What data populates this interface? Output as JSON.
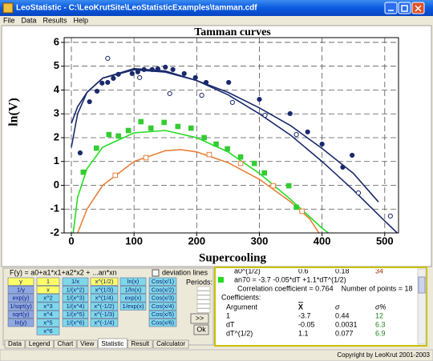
{
  "window": {
    "title": "LeoStatistic - C:\\LeoKrutSite\\LeoStatisticExamples\\tamman.cdf",
    "menu": [
      "File",
      "Data",
      "Results",
      "Help"
    ],
    "status": "Copyright by LeoKrut 2001-2003"
  },
  "chart_data": {
    "type": "scatter",
    "title": "Tamman curves",
    "x_label": "Supercooling",
    "y_label": "ln(V)",
    "xlim": [
      -11.5,
      522
    ],
    "ylim": [
      -2,
      6.2
    ],
    "xticks": [
      0,
      100,
      200,
      300,
      400,
      500
    ],
    "yticks": [
      -2,
      -1,
      0,
      1,
      2,
      3,
      4,
      5,
      6
    ],
    "grid": true,
    "series": [
      {
        "style": "line",
        "color": "#1a2a6c",
        "x": [
          0,
          10,
          25,
          50,
          100,
          150,
          200,
          250,
          300,
          350,
          400,
          450,
          490
        ],
        "values": [
          2.6,
          3.3,
          3.9,
          4.5,
          4.85,
          4.75,
          4.4,
          3.9,
          3.25,
          2.5,
          1.55,
          0.5,
          -0.7
        ]
      },
      {
        "style": "line",
        "color": "#1a2a6c",
        "x": [
          0,
          10,
          25,
          50,
          100,
          150,
          200,
          250,
          300,
          350,
          400,
          450,
          500,
          520
        ],
        "values": [
          1.6,
          3.0,
          3.9,
          4.5,
          4.9,
          4.8,
          4.4,
          3.8,
          3.0,
          2.1,
          1.0,
          -0.2,
          -1.5,
          -2
        ]
      },
      {
        "style": "line",
        "color": "#22dd22",
        "x": [
          3,
          10,
          25,
          50,
          100,
          150,
          200,
          250,
          300,
          350,
          400,
          410
        ],
        "values": [
          -2,
          -0.5,
          0.7,
          1.6,
          2.2,
          2.3,
          2.0,
          1.4,
          0.5,
          -0.6,
          -1.8,
          -2
        ]
      },
      {
        "style": "line",
        "color": "#e8803a",
        "x": [
          10,
          25,
          50,
          100,
          150,
          175,
          200,
          250,
          300,
          350,
          380,
          395
        ],
        "values": [
          -2,
          -1.0,
          0.0,
          1.0,
          1.45,
          1.5,
          1.4,
          0.95,
          0.25,
          -0.7,
          -1.4,
          -2
        ]
      },
      {
        "style": "circle-filled",
        "color": "#1a2a6c",
        "x": [
          14,
          29,
          41,
          49,
          58,
          67,
          75,
          97,
          106,
          116,
          129,
          138,
          150,
          162,
          180,
          198,
          215,
          251,
          300,
          349,
          377,
          400,
          433,
          448
        ],
        "values": [
          1.36,
          3.51,
          3.95,
          4.29,
          4.32,
          4.49,
          4.66,
          4.69,
          4.76,
          4.86,
          4.86,
          4.89,
          4.96,
          4.86,
          4.69,
          4.52,
          4.32,
          4.32,
          3.61,
          3.01,
          2.24,
          1.73,
          0.76,
          1.26
        ]
      },
      {
        "style": "circle-open",
        "color": "#1a2a6c",
        "x": [
          58,
          109,
          157,
          208,
          257,
          309,
          359,
          458,
          509
        ],
        "values": [
          5.33,
          4.52,
          3.85,
          3.78,
          3.48,
          2.94,
          2.13,
          -0.32,
          -1.29
        ]
      },
      {
        "style": "square-filled",
        "color": "#33cc33",
        "x": [
          19,
          40,
          60,
          75,
          91,
          111,
          127,
          148,
          170,
          191,
          212,
          231,
          249,
          270,
          292,
          308,
          347,
          359
        ],
        "values": [
          0.55,
          1.56,
          2.13,
          2.07,
          2.3,
          2.67,
          2.4,
          2.64,
          2.47,
          2.4,
          2.0,
          1.73,
          1.53,
          1.19,
          0.92,
          0.52,
          -0.02,
          -0.92
        ]
      },
      {
        "style": "square-open",
        "color": "#e8803a",
        "x": [
          70,
          119,
          220,
          270,
          322,
          368
        ],
        "values": [
          0.42,
          1.16,
          1.29,
          0.92,
          -0.02,
          -1.09
        ]
      }
    ]
  },
  "panel": {
    "formula": "F(y) = a0+a1*x1+a2*x2 + ...an*xn",
    "deviation_lines": "deviation lines",
    "periods": "Periods:",
    "more": ">>",
    "ok": "Ok",
    "button_columns": [
      {
        "color": "#8fa8e0",
        "labels": [
          "y",
          "1/y",
          "exp(y)",
          "1/sqrt(y)",
          "sqrt(y)",
          "ln(y)"
        ]
      },
      {
        "color": "#7fd8e8",
        "labels": [
          "1",
          "x",
          "x^2",
          "x^3",
          "x^4",
          "x^5",
          "x^6"
        ]
      },
      {
        "color": "#7fd8e8",
        "labels": [
          "1/x",
          "1/(x^2)",
          "1/(x^3)",
          "1/(x^4)",
          "1/(x^5)",
          "1/(x^6)"
        ]
      },
      {
        "color": "#7fd8e8",
        "labels": [
          "x^(1/2)",
          "x^(1/3)",
          "x^(1/4)",
          "x^(-1/2)",
          "x^(-1/3)",
          "x^(-1/4)"
        ]
      },
      {
        "color": "#7fd8e8",
        "labels": [
          "ln(x)",
          "1/ln(x)",
          "exp(x)",
          "1/exp(x)"
        ]
      },
      {
        "color": "#7fd8e8",
        "labels": [
          "Cos(x/1)",
          "Cos(x/2)",
          "Cos(x/3)",
          "Cos(x/4)",
          "Cos(x/5)",
          "Cos(x/6)"
        ]
      }
    ],
    "highlighted": [
      [
        0,
        0
      ],
      [
        1,
        0
      ],
      [
        1,
        1
      ],
      [
        3,
        0
      ]
    ],
    "tabs": [
      "Data",
      "Legend",
      "Chart",
      "View",
      "Statistic",
      "Result",
      "Calculator"
    ],
    "active_tab": 4
  },
  "results": {
    "top_row": [
      "a0^(1/2)",
      "0.6",
      "0.18",
      "34"
    ],
    "equation": "an70 = -3.7 -0.05*dT +1.1*dT^(1/2)",
    "correlation": "Correlation coefficient = 0.764",
    "points": "Number of points = 18",
    "coefficients_title": "Coefficients:",
    "header": [
      "Argument",
      "X",
      "σ",
      "σ%"
    ],
    "rows": [
      [
        "1",
        "-3.7",
        "0.44",
        "12"
      ],
      [
        "dT",
        "-0.05",
        "0.0031",
        "6.3"
      ],
      [
        "dT^(1/2)",
        "1.1",
        "0.077",
        "6.9"
      ]
    ]
  }
}
